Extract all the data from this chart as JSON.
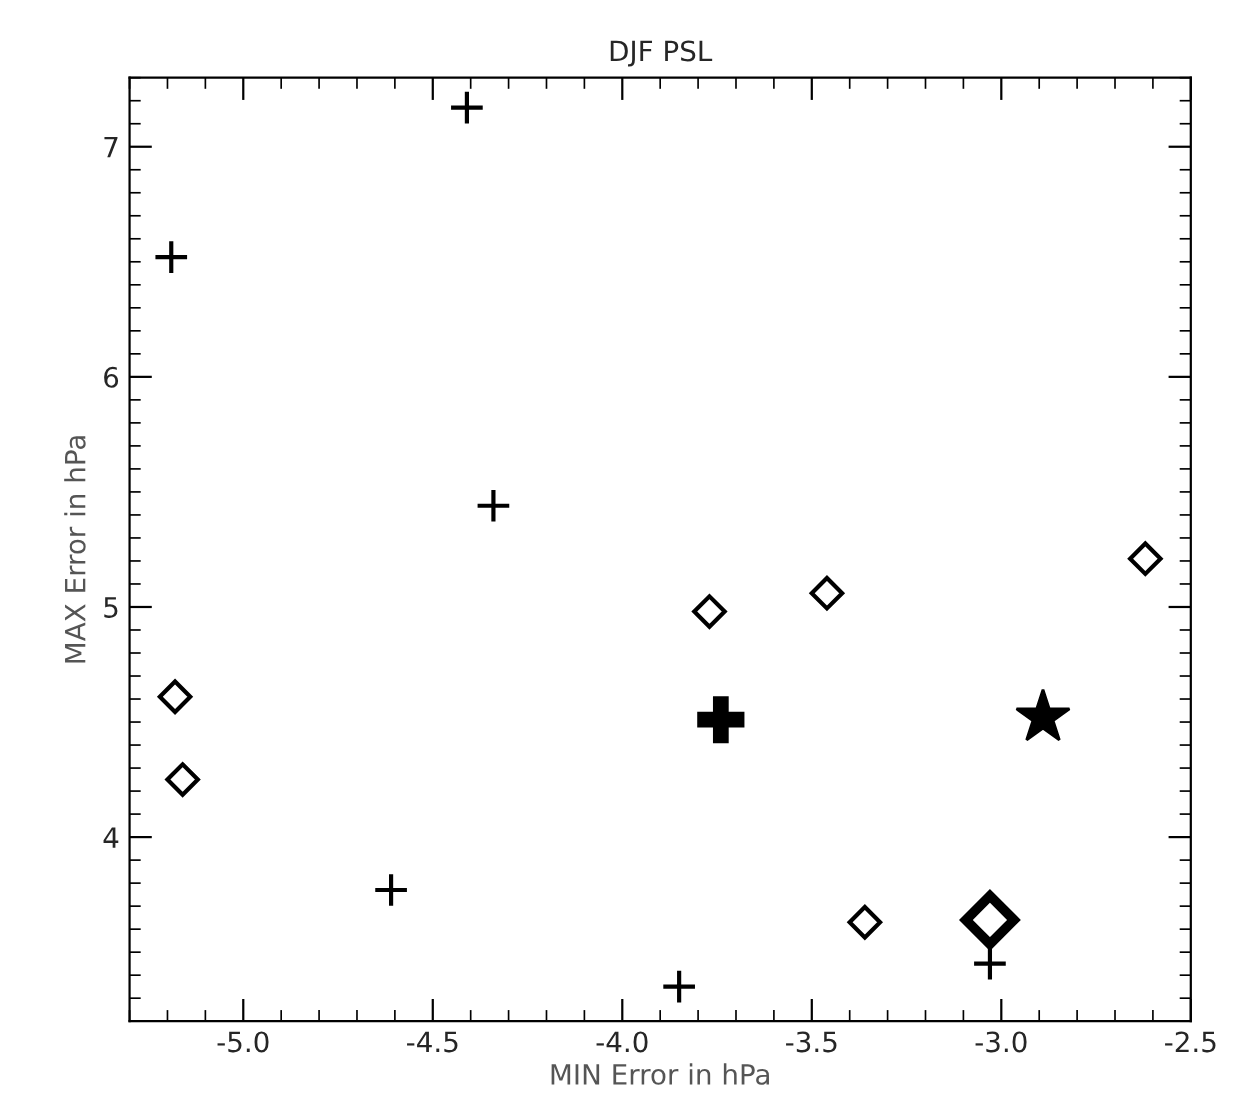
{
  "chart_data": {
    "type": "scatter",
    "title": "DJF PSL",
    "xlabel": "MIN Error in hPa",
    "ylabel": "MAX Error in hPa",
    "xlim": [
      -5.3,
      -2.5
    ],
    "ylim": [
      3.2,
      7.3
    ],
    "xticks": [
      {
        "value": -5.0,
        "label": "-5.0"
      },
      {
        "value": -4.5,
        "label": "-4.5"
      },
      {
        "value": -4.0,
        "label": "-4.0"
      },
      {
        "value": -3.5,
        "label": "-3.5"
      },
      {
        "value": -3.0,
        "label": "-3.0"
      },
      {
        "value": -2.5,
        "label": "-2.5"
      }
    ],
    "yticks": [
      4,
      5,
      6,
      7
    ],
    "grid": false,
    "legend": false,
    "series": [
      {
        "color": "#000000",
        "marker": "cross",
        "x": [
          -5.19,
          -4.41,
          -4.34,
          -4.61,
          -3.85,
          -3.03
        ],
        "values": [
          6.52,
          7.17,
          5.44,
          3.77,
          3.35,
          3.45
        ]
      },
      {
        "color": "#000000",
        "marker": "cross",
        "x": [
          -3.74
        ],
        "values": [
          4.51
        ]
      },
      {
        "color": "#000000",
        "marker": "diamond",
        "x": [
          -5.18,
          -5.16,
          -3.77,
          -3.46,
          -3.36,
          -2.62
        ],
        "values": [
          4.61,
          4.25,
          4.98,
          5.06,
          3.63,
          5.21
        ]
      },
      {
        "color": "#000000",
        "marker": "diamond",
        "x": [
          -3.03
        ],
        "values": [
          3.64
        ]
      },
      {
        "color": "#000000",
        "marker": "star",
        "x": [
          -2.89
        ],
        "values": [
          4.52
        ]
      }
    ]
  }
}
